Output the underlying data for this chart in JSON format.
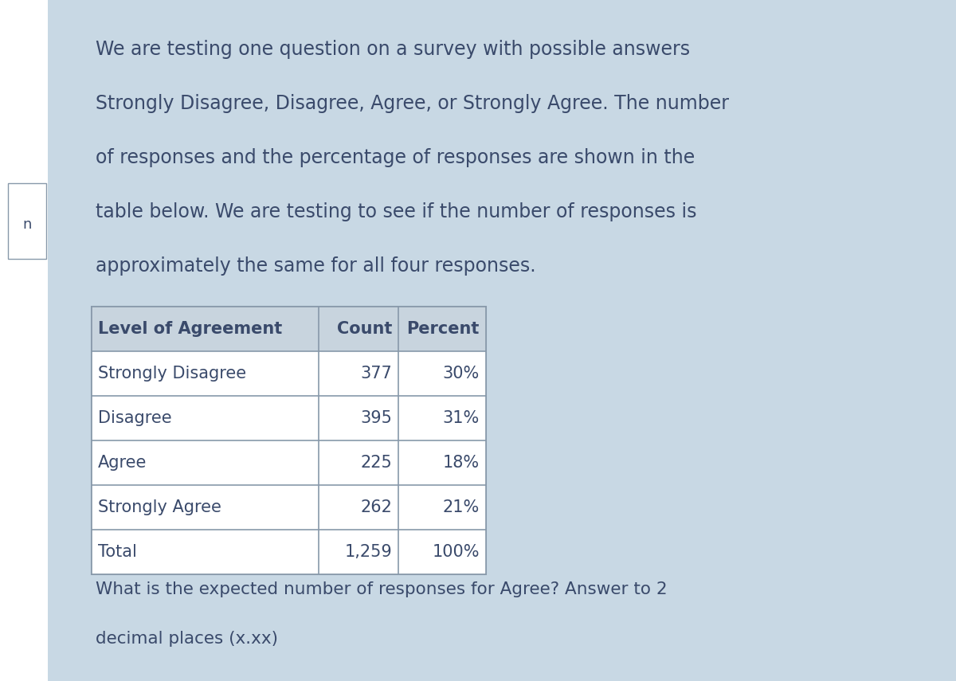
{
  "paragraph_text": "We are testing one question on a survey with possible answers\nStrongly Disagree, Disagree, Agree, or Strongly Agree. The number\nof responses and the percentage of responses are shown in the\ntable below. We are testing to see if the number of responses is\napproximately the same for all four responses.",
  "table_headers": [
    "Level of Agreement",
    "Count",
    "Percent"
  ],
  "table_rows": [
    [
      "Strongly Disagree",
      "377",
      "30%"
    ],
    [
      "Disagree",
      "395",
      "31%"
    ],
    [
      "Agree",
      "225",
      "18%"
    ],
    [
      "Strongly Agree",
      "262",
      "21%"
    ],
    [
      "Total",
      "1,259",
      "100%"
    ]
  ],
  "question_text": "What is the expected number of responses for Agree? Answer to 2\ndecimal places (x.xx)",
  "outer_bg": "#f0ede8",
  "left_panel_bg": "#ffffff",
  "main_bg": "#c8d8e4",
  "table_bg": "#c8d4de",
  "table_cell_bg": "#c8d4de",
  "text_color": "#3a4a6b",
  "border_color": "#8899aa",
  "left_box_color": "#a0b8cc",
  "para_font_size": 17,
  "table_font_size": 15,
  "question_font_size": 15.5
}
